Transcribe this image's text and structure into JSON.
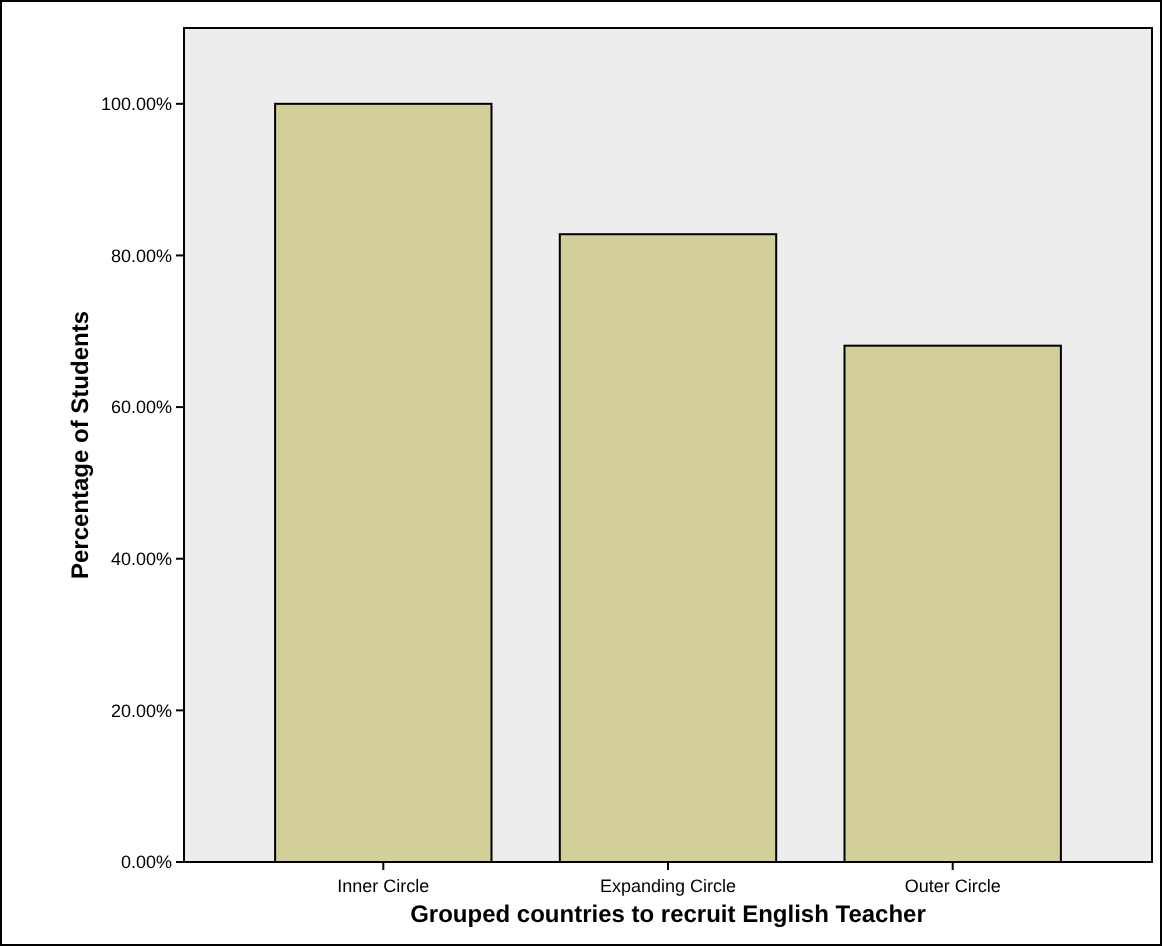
{
  "chart_data": {
    "type": "bar",
    "xlabel": "Grouped countries to recruit English Teacher",
    "ylabel": "Percentage of Students",
    "categories": [
      "Inner Circle",
      "Expanding Circle",
      "Outer Circle"
    ],
    "values": [
      100,
      82.8,
      68.1
    ],
    "color": "#d3cf98",
    "ylim": [
      0,
      110
    ],
    "yticks": [
      {
        "value": 0,
        "label": "0.00%"
      },
      {
        "value": 20,
        "label": "20.00%"
      },
      {
        "value": 40,
        "label": "40.00%"
      },
      {
        "value": 60,
        "label": "60.00%"
      },
      {
        "value": 80,
        "label": "80.00%"
      },
      {
        "value": 100,
        "label": "100.00%"
      }
    ],
    "grid": false
  }
}
